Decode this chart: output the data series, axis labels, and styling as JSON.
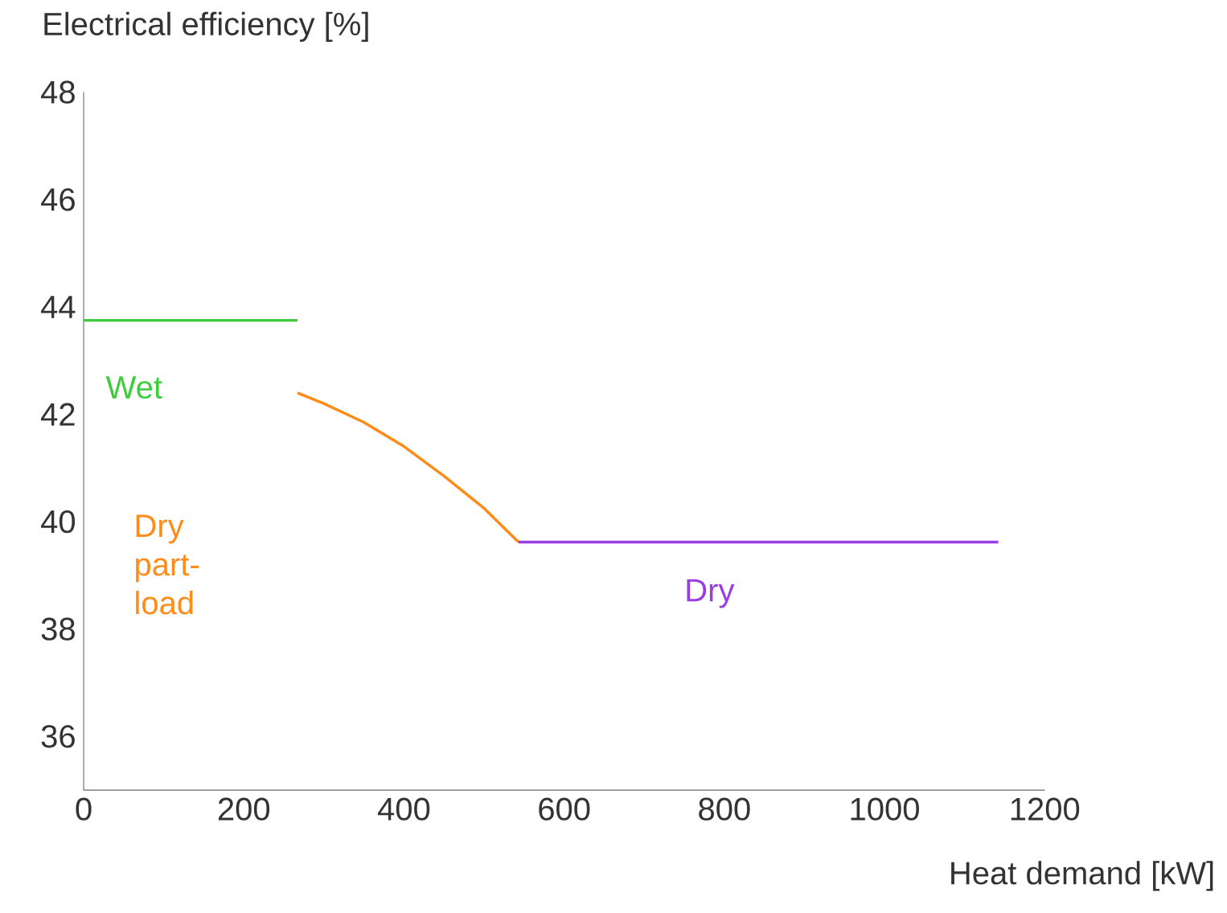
{
  "chart_data": {
    "type": "line",
    "xlabel": "Heat demand [kW]",
    "ylabel": "Electrical efficiency [%]",
    "xlim": [
      0,
      1200
    ],
    "ylim": [
      35,
      48
    ],
    "xticks": [
      0,
      200,
      400,
      600,
      800,
      1000,
      1200
    ],
    "yticks": [
      36,
      38,
      40,
      42,
      44,
      46,
      48
    ],
    "marker": "none",
    "line_style": "solid",
    "series": [
      {
        "name": "Wet",
        "color": "#3ccc3c",
        "x": [
          0,
          267
        ],
        "values": [
          43.75,
          43.75
        ]
      },
      {
        "name": "Dry part-load",
        "color": "#ff8c1a",
        "x": [
          267,
          300,
          350,
          400,
          450,
          500,
          543
        ],
        "values": [
          42.4,
          42.2,
          41.85,
          41.4,
          40.85,
          40.25,
          39.62
        ]
      },
      {
        "name": "Dry",
        "color": "#9b3de6",
        "x": [
          543,
          1142
        ],
        "values": [
          39.62,
          39.62
        ]
      }
    ]
  }
}
